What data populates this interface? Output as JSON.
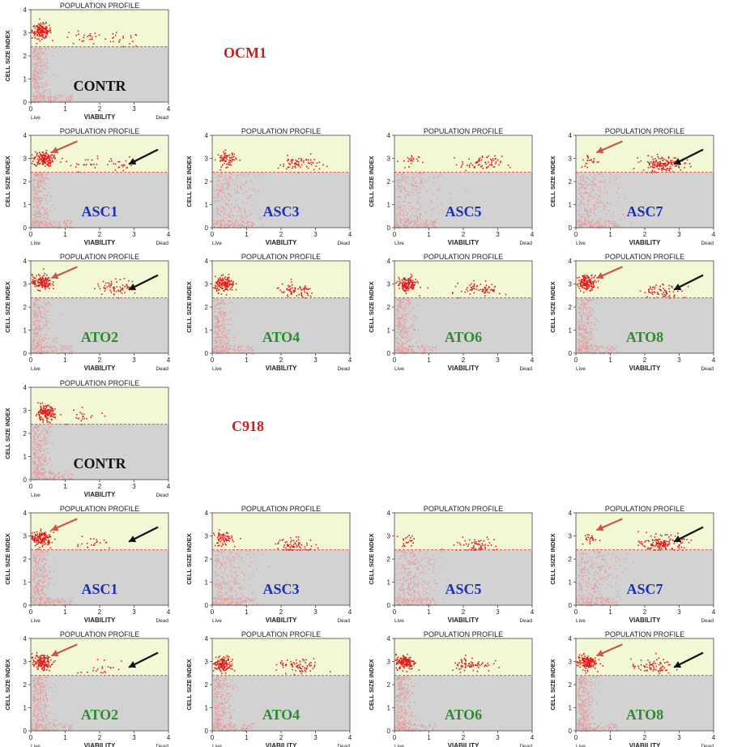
{
  "colors": {
    "upper_region": "#f2f7d6",
    "lower_region": "#d2d2d2",
    "dots_upper": "#e11d1d",
    "dots_lower": "#e69b9b",
    "divider": "#e05050",
    "group_label": "#cc1e1e",
    "label_black": "#111111",
    "label_blue": "#1f2fb4",
    "label_green": "#2e8b2e",
    "arrow_red": "#c8574a",
    "arrow_black": "#111111"
  },
  "panel_text": {
    "title": "POPULATION PROFILE",
    "ylabel": "CELL SIZE INDEX",
    "xlabel": "VIABILITY",
    "live": "Live",
    "dead": "Dead",
    "xticks": [
      "0",
      "1",
      "2",
      "3",
      "4"
    ],
    "yticks": [
      "0",
      "1",
      "2",
      "3",
      "4"
    ]
  },
  "groups": [
    {
      "key": "ocm1",
      "label": "OCM1"
    },
    {
      "key": "c918",
      "label": "C918"
    }
  ],
  "chart_data": {
    "type": "scatter",
    "title": "POPULATION PROFILE",
    "xlabel": "VIABILITY",
    "ylabel": "CELL SIZE INDEX",
    "xlim": [
      0,
      4
    ],
    "ylim": [
      0,
      4
    ],
    "gate_threshold_y": 2.4,
    "x_extremes": [
      "Live",
      "Dead"
    ],
    "grid": false,
    "panels": [
      {
        "group": "OCM1",
        "label": "CONTR",
        "label_color": "black",
        "clusters": [
          {
            "x": 0.3,
            "y": 3.1,
            "density": "high"
          },
          {
            "x": 1.5,
            "y": 2.8,
            "density": "low"
          },
          {
            "x": 2.6,
            "y": 2.7,
            "density": "low"
          }
        ],
        "arrows": []
      },
      {
        "group": "OCM1",
        "label": "ASC1",
        "label_color": "blue",
        "clusters": [
          {
            "x": 0.35,
            "y": 3.0,
            "density": "high"
          },
          {
            "x": 1.5,
            "y": 2.8,
            "density": "low"
          },
          {
            "x": 2.6,
            "y": 2.75,
            "density": "low"
          }
        ],
        "arrows": [
          "live",
          "dead"
        ]
      },
      {
        "group": "OCM1",
        "label": "ASC3",
        "label_color": "blue",
        "clusters": [
          {
            "x": 0.4,
            "y": 3.0,
            "density": "medium"
          },
          {
            "x": 2.5,
            "y": 2.8,
            "density": "medium"
          }
        ],
        "arrows": []
      },
      {
        "group": "OCM1",
        "label": "ASC5",
        "label_color": "blue",
        "clusters": [
          {
            "x": 0.4,
            "y": 2.9,
            "density": "low"
          },
          {
            "x": 2.5,
            "y": 2.8,
            "density": "medium"
          }
        ],
        "arrows": []
      },
      {
        "group": "OCM1",
        "label": "ASC7",
        "label_color": "blue",
        "clusters": [
          {
            "x": 0.4,
            "y": 2.9,
            "density": "low"
          },
          {
            "x": 2.5,
            "y": 2.8,
            "density": "high"
          }
        ],
        "arrows": [
          "live",
          "dead"
        ]
      },
      {
        "group": "OCM1",
        "label": "ATO2",
        "label_color": "green",
        "clusters": [
          {
            "x": 0.3,
            "y": 3.1,
            "density": "high"
          },
          {
            "x": 2.5,
            "y": 2.9,
            "density": "medium"
          }
        ],
        "arrows": [
          "live",
          "dead"
        ]
      },
      {
        "group": "OCM1",
        "label": "ATO4",
        "label_color": "green",
        "clusters": [
          {
            "x": 0.35,
            "y": 3.0,
            "density": "high"
          },
          {
            "x": 2.4,
            "y": 2.7,
            "density": "medium"
          }
        ],
        "arrows": []
      },
      {
        "group": "OCM1",
        "label": "ATO6",
        "label_color": "green",
        "clusters": [
          {
            "x": 0.35,
            "y": 3.0,
            "density": "high"
          },
          {
            "x": 2.5,
            "y": 2.8,
            "density": "medium"
          }
        ],
        "arrows": []
      },
      {
        "group": "OCM1",
        "label": "ATO8",
        "label_color": "green",
        "clusters": [
          {
            "x": 0.3,
            "y": 3.1,
            "density": "high"
          },
          {
            "x": 2.5,
            "y": 2.7,
            "density": "medium"
          }
        ],
        "arrows": [
          "live",
          "dead"
        ]
      },
      {
        "group": "C918",
        "label": "CONTR",
        "label_color": "black",
        "clusters": [
          {
            "x": 0.4,
            "y": 2.9,
            "density": "high"
          },
          {
            "x": 1.5,
            "y": 2.8,
            "density": "low"
          }
        ],
        "arrows": []
      },
      {
        "group": "C918",
        "label": "ASC1",
        "label_color": "blue",
        "clusters": [
          {
            "x": 0.3,
            "y": 2.9,
            "density": "high"
          },
          {
            "x": 1.8,
            "y": 2.7,
            "density": "low"
          }
        ],
        "arrows": [
          "live",
          "dead"
        ]
      },
      {
        "group": "C918",
        "label": "ASC3",
        "label_color": "blue",
        "clusters": [
          {
            "x": 0.3,
            "y": 2.9,
            "density": "medium"
          },
          {
            "x": 2.4,
            "y": 2.6,
            "density": "medium"
          }
        ],
        "arrows": []
      },
      {
        "group": "C918",
        "label": "ASC5",
        "label_color": "blue",
        "clusters": [
          {
            "x": 0.4,
            "y": 2.8,
            "density": "low"
          },
          {
            "x": 2.3,
            "y": 2.6,
            "density": "medium"
          }
        ],
        "arrows": []
      },
      {
        "group": "C918",
        "label": "ASC7",
        "label_color": "blue",
        "clusters": [
          {
            "x": 0.5,
            "y": 2.9,
            "density": "low"
          },
          {
            "x": 2.5,
            "y": 2.7,
            "density": "high"
          }
        ],
        "arrows": [
          "live",
          "dead"
        ]
      },
      {
        "group": "C918",
        "label": "ATO2",
        "label_color": "green",
        "clusters": [
          {
            "x": 0.3,
            "y": 3.0,
            "density": "high"
          },
          {
            "x": 2.0,
            "y": 2.7,
            "density": "low"
          }
        ],
        "arrows": [
          "live",
          "dead"
        ]
      },
      {
        "group": "C918",
        "label": "ATO4",
        "label_color": "green",
        "clusters": [
          {
            "x": 0.3,
            "y": 2.9,
            "density": "high"
          },
          {
            "x": 2.5,
            "y": 2.8,
            "density": "medium"
          }
        ],
        "arrows": []
      },
      {
        "group": "C918",
        "label": "ATO6",
        "label_color": "green",
        "clusters": [
          {
            "x": 0.3,
            "y": 3.0,
            "density": "high"
          },
          {
            "x": 2.2,
            "y": 2.9,
            "density": "medium"
          }
        ],
        "arrows": []
      },
      {
        "group": "C918",
        "label": "ATO8",
        "label_color": "green",
        "clusters": [
          {
            "x": 0.3,
            "y": 3.0,
            "density": "high"
          },
          {
            "x": 2.2,
            "y": 2.8,
            "density": "medium"
          }
        ],
        "arrows": [
          "live",
          "dead"
        ]
      }
    ]
  }
}
